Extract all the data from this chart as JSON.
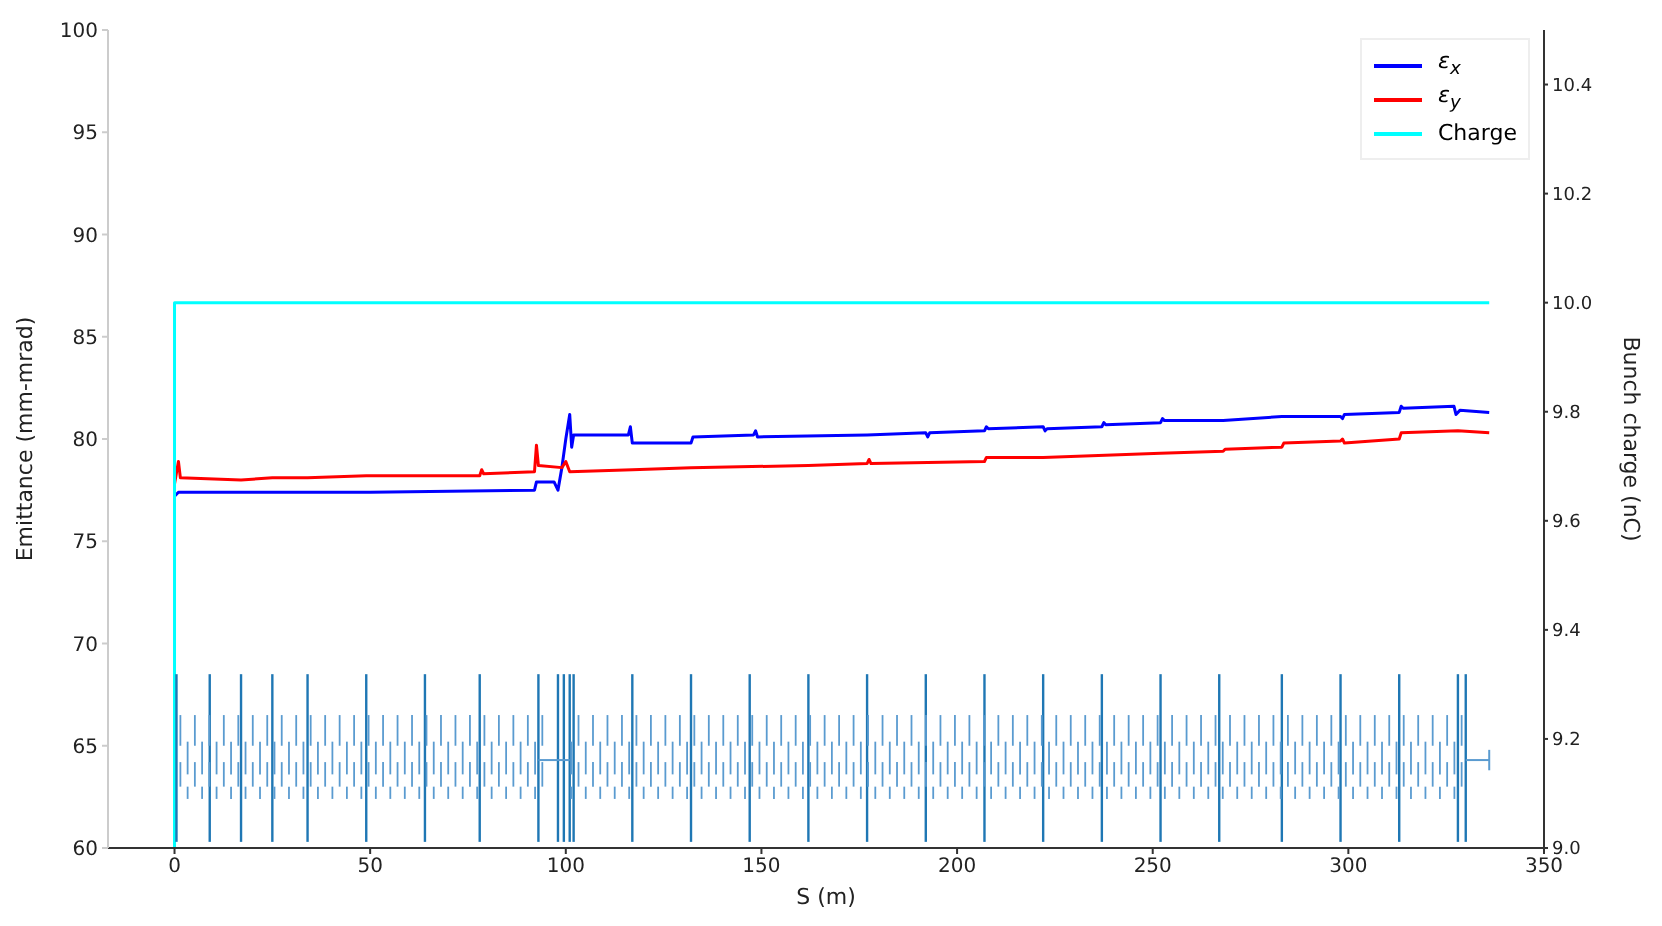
{
  "chart_data": {
    "type": "line",
    "xlabel": "S (m)",
    "ylabel": "Emittance (mm-mrad)",
    "y2label": "Bunch charge (nC)",
    "xlim": [
      -17,
      350
    ],
    "xticks": [
      0,
      50,
      100,
      150,
      200,
      250,
      300,
      350
    ],
    "ylim": [
      60,
      100
    ],
    "yticks": [
      60,
      65,
      70,
      75,
      80,
      85,
      90,
      95,
      100
    ],
    "y2lim": [
      9.0,
      10.5
    ],
    "y2ticks": [
      {
        "value": 9.0,
        "label": "9.0"
      },
      {
        "value": 9.2,
        "label": "9.2"
      },
      {
        "value": 9.4,
        "label": "9.4"
      },
      {
        "value": 9.6,
        "label": "9.6"
      },
      {
        "value": 9.8,
        "label": "9.8"
      },
      {
        "value": 10.0,
        "label": "10.0"
      },
      {
        "value": 10.2,
        "label": "10.2"
      },
      {
        "value": 10.4,
        "label": "10.4"
      }
    ],
    "legend": "top right",
    "marker": "none",
    "line_style": "solid",
    "series": [
      {
        "name": "ε$_{x}$",
        "color": "#0000ff",
        "x": [
          0,
          1,
          30,
          50,
          92,
          92.5,
          97,
          98,
          99,
          100,
          101,
          101.5,
          102,
          116,
          116.5,
          117,
          132,
          132.5,
          148,
          148.5,
          149,
          177,
          192,
          192.5,
          193,
          207,
          207.5,
          208,
          222,
          222.5,
          223,
          237,
          237.5,
          238,
          252,
          252.5,
          253,
          268,
          283,
          298,
          298.5,
          299,
          313,
          313.5,
          314,
          327,
          327.5,
          328.5,
          336
        ],
        "values": [
          77.2,
          77.4,
          77.4,
          77.4,
          77.5,
          77.9,
          77.9,
          77.5,
          78.6,
          80.0,
          81.2,
          79.6,
          80.2,
          80.2,
          80.6,
          79.8,
          79.8,
          80.1,
          80.2,
          80.4,
          80.1,
          80.2,
          80.3,
          80.1,
          80.3,
          80.4,
          80.6,
          80.5,
          80.6,
          80.4,
          80.5,
          80.6,
          80.8,
          80.7,
          80.8,
          81.0,
          80.9,
          80.9,
          81.1,
          81.1,
          81.0,
          81.2,
          81.3,
          81.6,
          81.5,
          81.6,
          81.2,
          81.4,
          81.3
        ]
      },
      {
        "name": "ε$_{y}$",
        "color": "#ff0000",
        "x": [
          0,
          1,
          1.5,
          17,
          25,
          34,
          49,
          64,
          78,
          78.5,
          79,
          92,
          92.5,
          93,
          99,
          100,
          101,
          117,
          132,
          162,
          177,
          177.5,
          178,
          207,
          207.5,
          222,
          252,
          268,
          268.5,
          283,
          283.5,
          298,
          298.5,
          299,
          313,
          313.5,
          328,
          336
        ],
        "values": [
          77.8,
          78.9,
          78.1,
          78.0,
          78.1,
          78.1,
          78.2,
          78.2,
          78.2,
          78.5,
          78.3,
          78.4,
          79.7,
          78.7,
          78.6,
          78.9,
          78.4,
          78.5,
          78.6,
          78.7,
          78.8,
          79.0,
          78.8,
          78.9,
          79.1,
          79.1,
          79.3,
          79.4,
          79.5,
          79.6,
          79.8,
          79.9,
          80.0,
          79.8,
          80.0,
          80.3,
          80.4,
          80.3
        ]
      },
      {
        "name": "Charge",
        "color": "#00ffff",
        "axis": "y2",
        "x": [
          0,
          0,
          336
        ],
        "values": [
          9.0,
          10.0,
          10.0
        ]
      }
    ]
  }
}
